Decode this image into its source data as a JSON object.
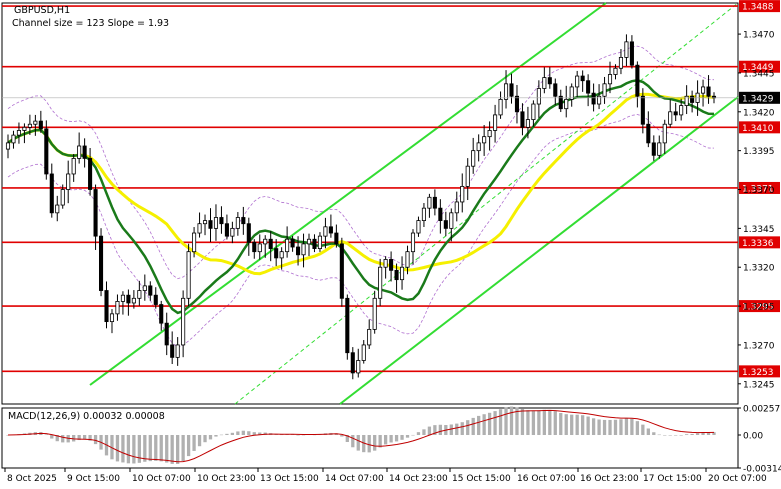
{
  "header": {
    "symbol": "GBPUSD,H1",
    "channel_info": "Channel size = 123 Slope = 1.93"
  },
  "macd": {
    "label": "MACD(12,26,9) 0.00032 0.00008",
    "ticks": [
      "0.00257",
      "0.00",
      "-0.00314"
    ]
  },
  "colors": {
    "background": "#ffffff",
    "bull_candle": "#000000",
    "bear_candle": "#000000",
    "level_line": "#e00000",
    "level_badge": "#e00000",
    "channel": "#33dd33",
    "ma_fast": "#1a7a1a",
    "ma_slow": "#f5f000",
    "envelope": "#b070d0",
    "macd_hist": "#b0b0b0",
    "macd_signal": "#c00000",
    "current_price_badge": "#000000"
  },
  "chart_data": {
    "type": "candlestick",
    "symbol": "GBPUSD",
    "timeframe": "H1",
    "ylim": [
      1.3232,
      1.349
    ],
    "price_ticks": [
      {
        "value": 1.347,
        "label": "1.3470"
      },
      {
        "value": 1.3445,
        "label": "1.3445"
      },
      {
        "value": 1.342,
        "label": "1.3420"
      },
      {
        "value": 1.3395,
        "label": "1.3395"
      },
      {
        "value": 1.337,
        "label": "1.3370"
      },
      {
        "value": 1.3345,
        "label": "1.3345"
      },
      {
        "value": 1.332,
        "label": "1.3320"
      },
      {
        "value": 1.3295,
        "label": "1.3295"
      },
      {
        "value": 1.327,
        "label": "1.3270"
      },
      {
        "value": 1.3245,
        "label": "1.3245"
      }
    ],
    "levels": [
      {
        "value": 1.3488,
        "label": "1.3488"
      },
      {
        "value": 1.3449,
        "label": "1.3449"
      },
      {
        "value": 1.341,
        "label": "1.3410"
      },
      {
        "value": 1.3371,
        "label": "1.3371"
      },
      {
        "value": 1.3336,
        "label": "1.3336"
      },
      {
        "value": 1.3295,
        "label": "1.3295"
      },
      {
        "value": 1.3253,
        "label": "1.3253"
      }
    ],
    "current_price": {
      "value": 1.3429,
      "label": "1.3429"
    },
    "x_labels": [
      "8 Oct 2025",
      "9 Oct 15:00",
      "10 Oct 07:00",
      "10 Oct 23:00",
      "13 Oct 15:00",
      "14 Oct 07:00",
      "14 Oct 23:00",
      "15 Oct 15:00",
      "16 Oct 07:00",
      "16 Oct 23:00",
      "17 Oct 15:00",
      "20 Oct 07:00"
    ],
    "closes": [
      1.34,
      1.3405,
      1.3408,
      1.341,
      1.3412,
      1.3414,
      1.3409,
      1.338,
      1.3355,
      1.336,
      1.337,
      1.338,
      1.339,
      1.3398,
      1.339,
      1.337,
      1.334,
      1.3305,
      1.3285,
      1.329,
      1.3298,
      1.3302,
      1.3297,
      1.33,
      1.3305,
      1.3308,
      1.3302,
      1.3296,
      1.3284,
      1.327,
      1.3262,
      1.327,
      1.33,
      1.333,
      1.3342,
      1.3348,
      1.335,
      1.3345,
      1.3352,
      1.3348,
      1.334,
      1.3345,
      1.3352,
      1.3348,
      1.3336,
      1.333,
      1.3335,
      1.3338,
      1.3332,
      1.3326,
      1.333,
      1.3338,
      1.3333,
      1.3328,
      1.3335,
      1.3338,
      1.3332,
      1.334,
      1.3346,
      1.3342,
      1.3335,
      1.33,
      1.3265,
      1.3252,
      1.326,
      1.327,
      1.328,
      1.33,
      1.332,
      1.3325,
      1.3318,
      1.3312,
      1.332,
      1.333,
      1.3342,
      1.335,
      1.3358,
      1.3365,
      1.3358,
      1.335,
      1.3345,
      1.3355,
      1.3362,
      1.3372,
      1.3385,
      1.3395,
      1.34,
      1.3404,
      1.3408,
      1.3418,
      1.3428,
      1.3438,
      1.343,
      1.342,
      1.341,
      1.3415,
      1.3425,
      1.3435,
      1.3442,
      1.3438,
      1.343,
      1.3422,
      1.3428,
      1.3436,
      1.3443,
      1.344,
      1.3432,
      1.3425,
      1.343,
      1.3438,
      1.3444,
      1.3448,
      1.3455,
      1.3465,
      1.345,
      1.343,
      1.3412,
      1.34,
      1.3392,
      1.34,
      1.3412,
      1.342,
      1.3418,
      1.3424,
      1.343,
      1.3426,
      1.3432,
      1.3436,
      1.343,
      1.3429
    ],
    "macd": {
      "ylim": [
        -0.00314,
        0.00257
      ],
      "ticks": [
        0.00257,
        0.0,
        -0.00314
      ],
      "value": 0.00032,
      "signal": 8e-05
    }
  }
}
